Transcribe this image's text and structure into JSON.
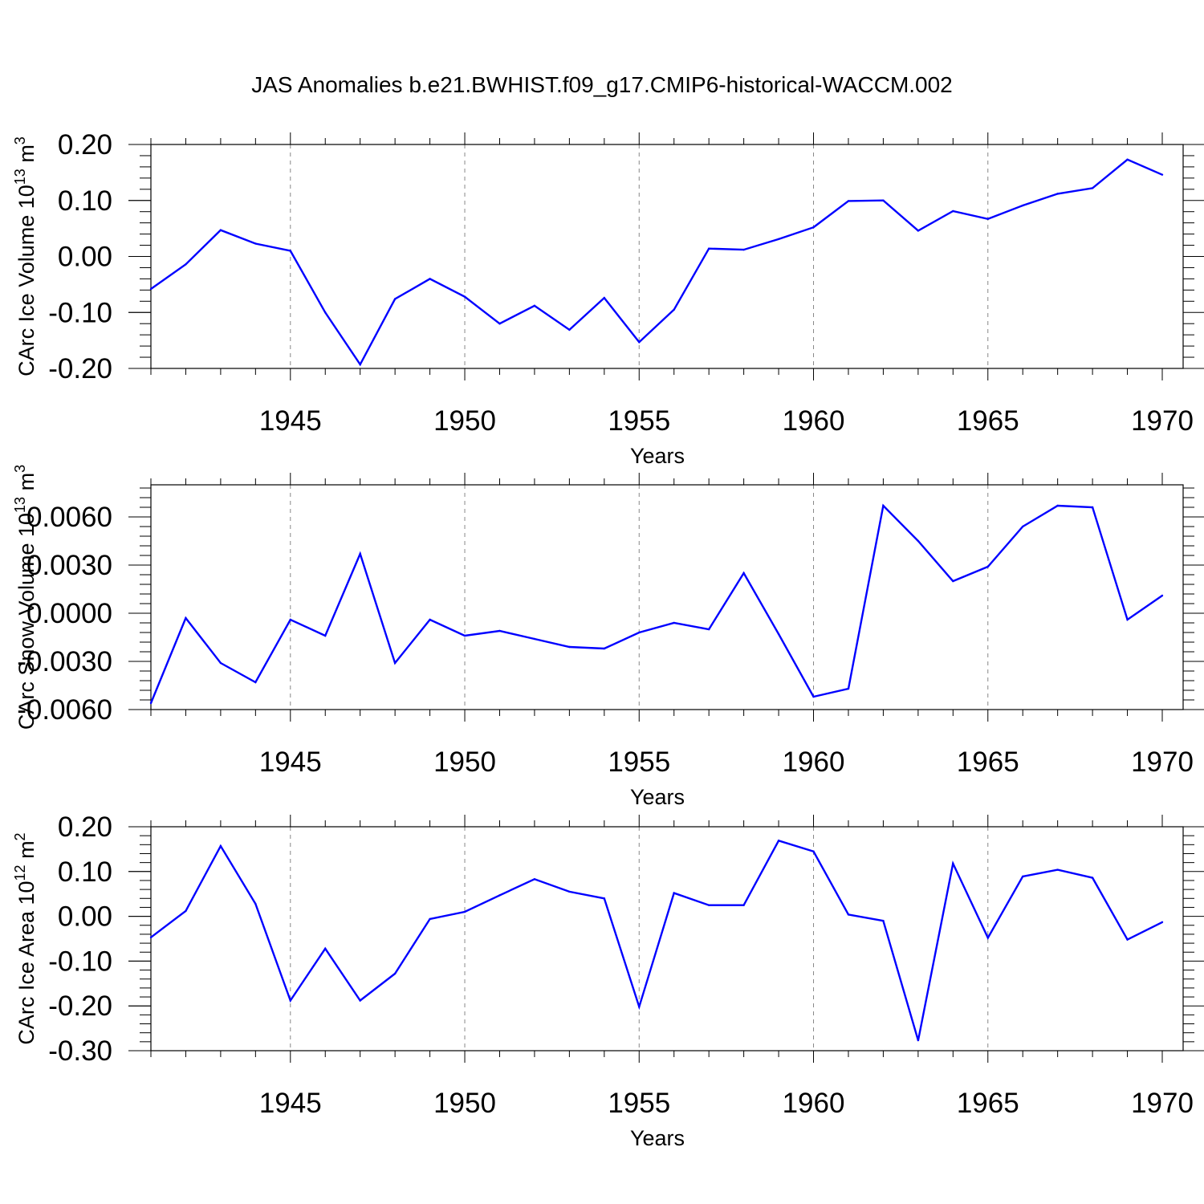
{
  "title": "JAS Anomalies b.e21.BWHIST.f09_g17.CMIP6-historical-WACCM.002",
  "chart_data": [
    {
      "type": "line",
      "ylabel_main": "CArc Ice Volume 10",
      "ylabel_sup": "13",
      "ylabel_unit": " m",
      "ylabel_unit_sup": "3",
      "xlabel": "Years",
      "xlim": [
        1941,
        1970
      ],
      "ylim": [
        -0.2,
        0.2
      ],
      "yticks": [
        {
          "value": -0.2,
          "label": "-0.20"
        },
        {
          "value": -0.1,
          "label": "-0.10"
        },
        {
          "value": 0.0,
          "label": "0.00"
        },
        {
          "value": 0.1,
          "label": "0.10"
        },
        {
          "value": 0.2,
          "label": "0.20"
        }
      ],
      "yminor": 0.02,
      "xticks": [
        {
          "value": 1945,
          "label": "1945"
        },
        {
          "value": 1950,
          "label": "1950"
        },
        {
          "value": 1955,
          "label": "1955"
        },
        {
          "value": 1960,
          "label": "1960"
        },
        {
          "value": 1965,
          "label": "1965"
        },
        {
          "value": 1970,
          "label": "1970"
        }
      ],
      "x": [
        1941,
        1942,
        1943,
        1944,
        1945,
        1946,
        1947,
        1948,
        1949,
        1950,
        1951,
        1952,
        1953,
        1954,
        1955,
        1956,
        1957,
        1958,
        1959,
        1960,
        1961,
        1962,
        1963,
        1964,
        1965,
        1966,
        1967,
        1968,
        1969,
        1970
      ],
      "values": [
        -0.058,
        -0.014,
        0.047,
        0.023,
        0.01,
        -0.1,
        -0.193,
        -0.076,
        -0.04,
        -0.072,
        -0.12,
        -0.088,
        -0.131,
        -0.074,
        -0.153,
        -0.095,
        0.014,
        0.012,
        0.031,
        0.052,
        0.099,
        0.1,
        0.046,
        0.081,
        0.067,
        0.091,
        0.112,
        0.122,
        0.173,
        0.146
      ],
      "grid": "dashed vertical lines at major x ticks",
      "line_color": "#0000ff"
    },
    {
      "type": "line",
      "ylabel_main": "CArc Snow Volume 10",
      "ylabel_sup": "13",
      "ylabel_unit": " m",
      "ylabel_unit_sup": "3",
      "xlabel": "Years",
      "xlim": [
        1941,
        1970
      ],
      "ylim": [
        -0.006,
        0.008
      ],
      "yticks": [
        {
          "value": -0.006,
          "label": "-0.0060"
        },
        {
          "value": -0.003,
          "label": "-0.0030"
        },
        {
          "value": 0.0,
          "label": "0.0000"
        },
        {
          "value": 0.003,
          "label": "0.0030"
        },
        {
          "value": 0.006,
          "label": "0.0060"
        }
      ],
      "yminor": 0.0006,
      "xticks": [
        {
          "value": 1945,
          "label": "1945"
        },
        {
          "value": 1950,
          "label": "1950"
        },
        {
          "value": 1955,
          "label": "1955"
        },
        {
          "value": 1960,
          "label": "1960"
        },
        {
          "value": 1965,
          "label": "1965"
        },
        {
          "value": 1970,
          "label": "1970"
        }
      ],
      "x": [
        1941,
        1942,
        1943,
        1944,
        1945,
        1946,
        1947,
        1948,
        1949,
        1950,
        1951,
        1952,
        1953,
        1954,
        1955,
        1956,
        1957,
        1958,
        1959,
        1960,
        1961,
        1962,
        1963,
        1964,
        1965,
        1966,
        1967,
        1968,
        1969,
        1970
      ],
      "values": [
        -0.0056,
        -0.0003,
        -0.0031,
        -0.0043,
        -0.0004,
        -0.0014,
        0.0037,
        -0.0031,
        -0.0004,
        -0.0014,
        -0.0011,
        -0.0016,
        -0.0021,
        -0.0022,
        -0.0012,
        -0.0006,
        -0.001,
        0.0025,
        -0.0013,
        -0.0052,
        -0.0047,
        0.0067,
        0.0045,
        0.002,
        0.0029,
        0.0054,
        0.0067,
        0.0066,
        -0.0004,
        0.0011
      ],
      "grid": "dashed vertical lines at major x ticks",
      "line_color": "#0000ff"
    },
    {
      "type": "line",
      "ylabel_main": "CArc Ice Area 10",
      "ylabel_sup": "12",
      "ylabel_unit": " m",
      "ylabel_unit_sup": "2",
      "xlabel": "Years",
      "xlim": [
        1941,
        1970
      ],
      "ylim": [
        -0.3,
        0.2
      ],
      "yticks": [
        {
          "value": -0.3,
          "label": "-0.30"
        },
        {
          "value": -0.2,
          "label": "-0.20"
        },
        {
          "value": -0.1,
          "label": "-0.10"
        },
        {
          "value": 0.0,
          "label": "0.00"
        },
        {
          "value": 0.1,
          "label": "0.10"
        },
        {
          "value": 0.2,
          "label": "0.20"
        }
      ],
      "yminor": 0.02,
      "xticks": [
        {
          "value": 1945,
          "label": "1945"
        },
        {
          "value": 1950,
          "label": "1950"
        },
        {
          "value": 1955,
          "label": "1955"
        },
        {
          "value": 1960,
          "label": "1960"
        },
        {
          "value": 1965,
          "label": "1965"
        },
        {
          "value": 1970,
          "label": "1970"
        }
      ],
      "x": [
        1941,
        1942,
        1943,
        1944,
        1945,
        1946,
        1947,
        1948,
        1949,
        1950,
        1951,
        1952,
        1953,
        1954,
        1955,
        1956,
        1957,
        1958,
        1959,
        1960,
        1961,
        1962,
        1963,
        1964,
        1965,
        1966,
        1967,
        1968,
        1969,
        1970
      ],
      "values": [
        -0.047,
        0.012,
        0.157,
        0.028,
        -0.188,
        -0.072,
        -0.188,
        -0.128,
        -0.006,
        0.01,
        0.047,
        0.083,
        0.055,
        0.04,
        -0.202,
        0.052,
        0.025,
        0.025,
        0.169,
        0.145,
        0.004,
        -0.01,
        -0.277,
        0.118,
        -0.048,
        0.089,
        0.104,
        0.086,
        -0.052,
        -0.013
      ],
      "grid": "dashed vertical lines at major x ticks",
      "line_color": "#0000ff"
    }
  ]
}
